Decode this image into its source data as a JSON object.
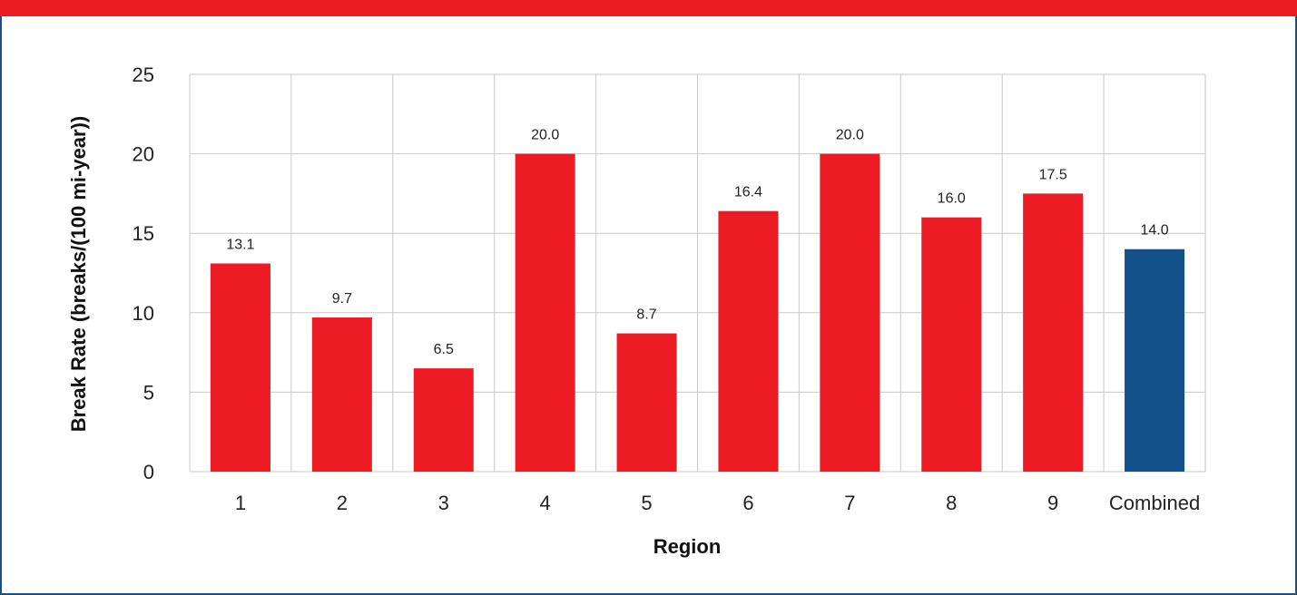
{
  "chart_data": {
    "type": "bar",
    "categories": [
      "1",
      "2",
      "3",
      "4",
      "5",
      "6",
      "7",
      "8",
      "9",
      "Combined"
    ],
    "values": [
      13.1,
      9.7,
      6.5,
      20.0,
      8.7,
      16.4,
      20.0,
      16.0,
      17.5,
      14.0
    ],
    "data_labels": [
      "13.1",
      "9.7",
      "6.5",
      "20.0",
      "8.7",
      "16.4",
      "20.0",
      "16.0",
      "17.5",
      "14.0"
    ],
    "xlabel": "Region",
    "ylabel": "Break Rate (breaks/(100 mi-year))",
    "ylim": [
      0,
      25
    ],
    "yticks": [
      0,
      5,
      10,
      15,
      20,
      25
    ],
    "grid": true,
    "bar_colors": [
      "#ed1c24",
      "#ed1c24",
      "#ed1c24",
      "#ed1c24",
      "#ed1c24",
      "#ed1c24",
      "#ed1c24",
      "#ed1c24",
      "#ed1c24",
      "#12508a"
    ]
  },
  "colors": {
    "accent": "#ed1c24",
    "frame": "#1d4f86",
    "grid": "#c8c8c8"
  }
}
